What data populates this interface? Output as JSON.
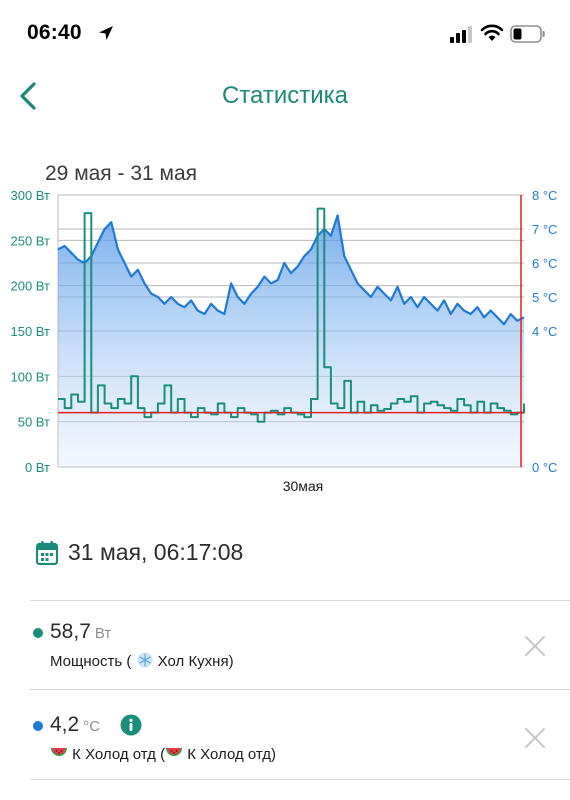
{
  "status_bar": {
    "time": "06:40"
  },
  "header": {
    "title": "Статистика"
  },
  "chart_data": {
    "type": "line",
    "date_range": "29 мая - 31 мая",
    "x_tick_labels": [
      "30мая"
    ],
    "left_axis": {
      "unit": "Вт",
      "ticks": [
        "0 Вт",
        "50 Вт",
        "100 Вт",
        "150 Вт",
        "200 Вт",
        "250 Вт",
        "300 Вт"
      ],
      "range": [
        0,
        300
      ]
    },
    "right_axis": {
      "unit": "°C",
      "ticks": [
        "0 °C",
        "4 °C",
        "5 °C",
        "6 °C",
        "7 °C",
        "8 °C"
      ],
      "range": [
        0,
        8
      ]
    },
    "reference_line_power": 60,
    "series": [
      {
        "color": "#1a8d7c",
        "axis": "left",
        "values": [
          75,
          65,
          80,
          72,
          280,
          60,
          90,
          70,
          65,
          75,
          70,
          100,
          65,
          55,
          60,
          70,
          90,
          60,
          75,
          60,
          55,
          65,
          60,
          58,
          70,
          60,
          55,
          65,
          60,
          58,
          50,
          60,
          62,
          58,
          65,
          60,
          58,
          55,
          75,
          285,
          110,
          70,
          65,
          95,
          60,
          72,
          60,
          68,
          62,
          64,
          70,
          75,
          72,
          78,
          60,
          70,
          72,
          68,
          65,
          62,
          75,
          68,
          60,
          72,
          60,
          70,
          65,
          62,
          58,
          60,
          70
        ]
      },
      {
        "color": "#1e7ad6",
        "axis": "right",
        "fill": true,
        "values": [
          6.4,
          6.5,
          6.3,
          6.1,
          6.0,
          6.2,
          6.6,
          7.0,
          7.2,
          6.4,
          6.0,
          5.6,
          5.8,
          5.4,
          5.1,
          5.0,
          4.8,
          5.0,
          4.8,
          4.7,
          4.9,
          4.6,
          4.5,
          4.8,
          4.6,
          4.5,
          5.4,
          5.0,
          4.8,
          5.1,
          5.3,
          5.6,
          5.4,
          5.5,
          6.0,
          5.7,
          5.9,
          6.2,
          6.4,
          6.8,
          7.0,
          6.8,
          7.4,
          6.2,
          5.8,
          5.4,
          5.2,
          5.0,
          5.3,
          5.1,
          4.9,
          5.3,
          4.8,
          5.0,
          4.7,
          5.0,
          4.8,
          4.6,
          4.9,
          4.5,
          4.8,
          4.6,
          4.5,
          4.7,
          4.4,
          4.6,
          4.4,
          4.2,
          4.5,
          4.3,
          4.4
        ]
      }
    ]
  },
  "reading": {
    "timestamp": "31 мая, 06:17:08",
    "items": [
      {
        "value": "58,7",
        "unit": "Вт",
        "label_pre": "Мощность (",
        "label_device": "Хол Кухня)",
        "dot_color": "#1a8d7c"
      },
      {
        "value": "4,2",
        "unit": "°C",
        "label_pre": "К Холод отд (",
        "label_device": "К Холод отд)",
        "dot_color": "#1e7ad6"
      }
    ]
  }
}
